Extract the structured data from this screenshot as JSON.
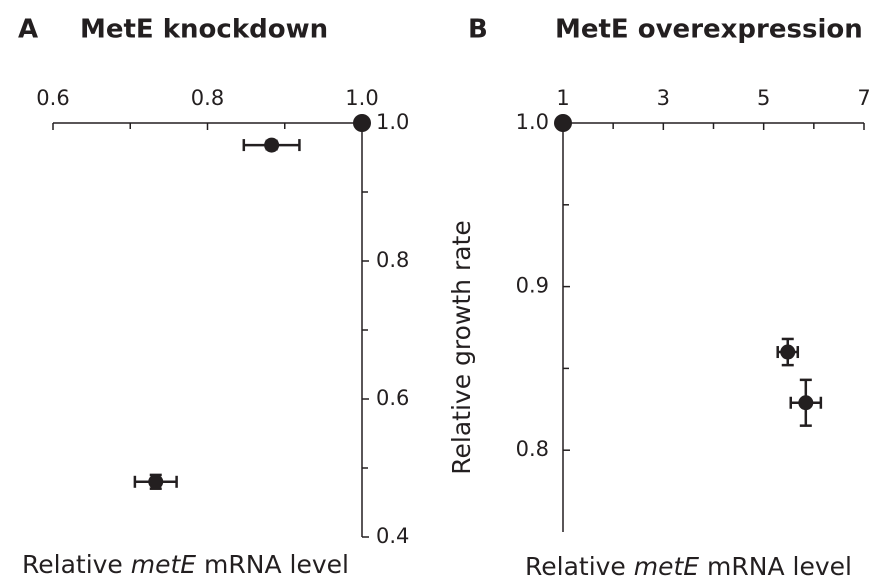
{
  "chart_data": [
    {
      "type": "scatter",
      "panel_label": "A",
      "title": "MetE knockdown",
      "xlabel_parts": [
        "Relative ",
        "metE",
        " mRNA level"
      ],
      "xaxis_position": "top",
      "yaxis_position": "right",
      "color": "#231f20",
      "x": [
        1.0,
        0.883,
        0.733
      ],
      "values": [
        1.0,
        0.968,
        0.48
      ],
      "xerr": [
        null,
        0.036,
        0.027
      ],
      "yerr": [
        null,
        0.006,
        0.01
      ],
      "xlim": [
        0.6,
        1.0
      ],
      "xticks": [
        0.6,
        0.8,
        {
          "value": 1,
          "label": "1.0"
        }
      ],
      "xminorticks": [
        0.7,
        0.9
      ],
      "ylim": [
        0.4,
        1.0
      ],
      "yticks": [
        0.4,
        0.6,
        0.8,
        {
          "value": 1,
          "label": "1.0"
        }
      ],
      "yminorticks": [
        0.5,
        0.7,
        0.9
      ]
    },
    {
      "type": "scatter",
      "panel_label": "B",
      "title": "MetE overexpression",
      "xlabel_parts": [
        "Relative ",
        "metE",
        " mRNA level"
      ],
      "ylabel": "Relative growth rate",
      "xaxis_position": "top",
      "yaxis_position": "left",
      "color": "#231f20",
      "x": [
        1,
        5.48,
        5.84
      ],
      "values": [
        1.0,
        0.86,
        0.829
      ],
      "xerr": [
        null,
        0.2,
        0.3
      ],
      "yerr": [
        null,
        0.008,
        0.014
      ],
      "xlim": [
        1,
        7
      ],
      "xticks": [
        1,
        3,
        5,
        7
      ],
      "xminorticks": [
        2,
        4,
        6
      ],
      "ylim": [
        0.75,
        1.0
      ],
      "yticks": [
        0.8,
        0.9,
        {
          "value": 1,
          "label": "1.0"
        }
      ],
      "yminorticks": [
        0.85,
        0.95
      ]
    }
  ]
}
